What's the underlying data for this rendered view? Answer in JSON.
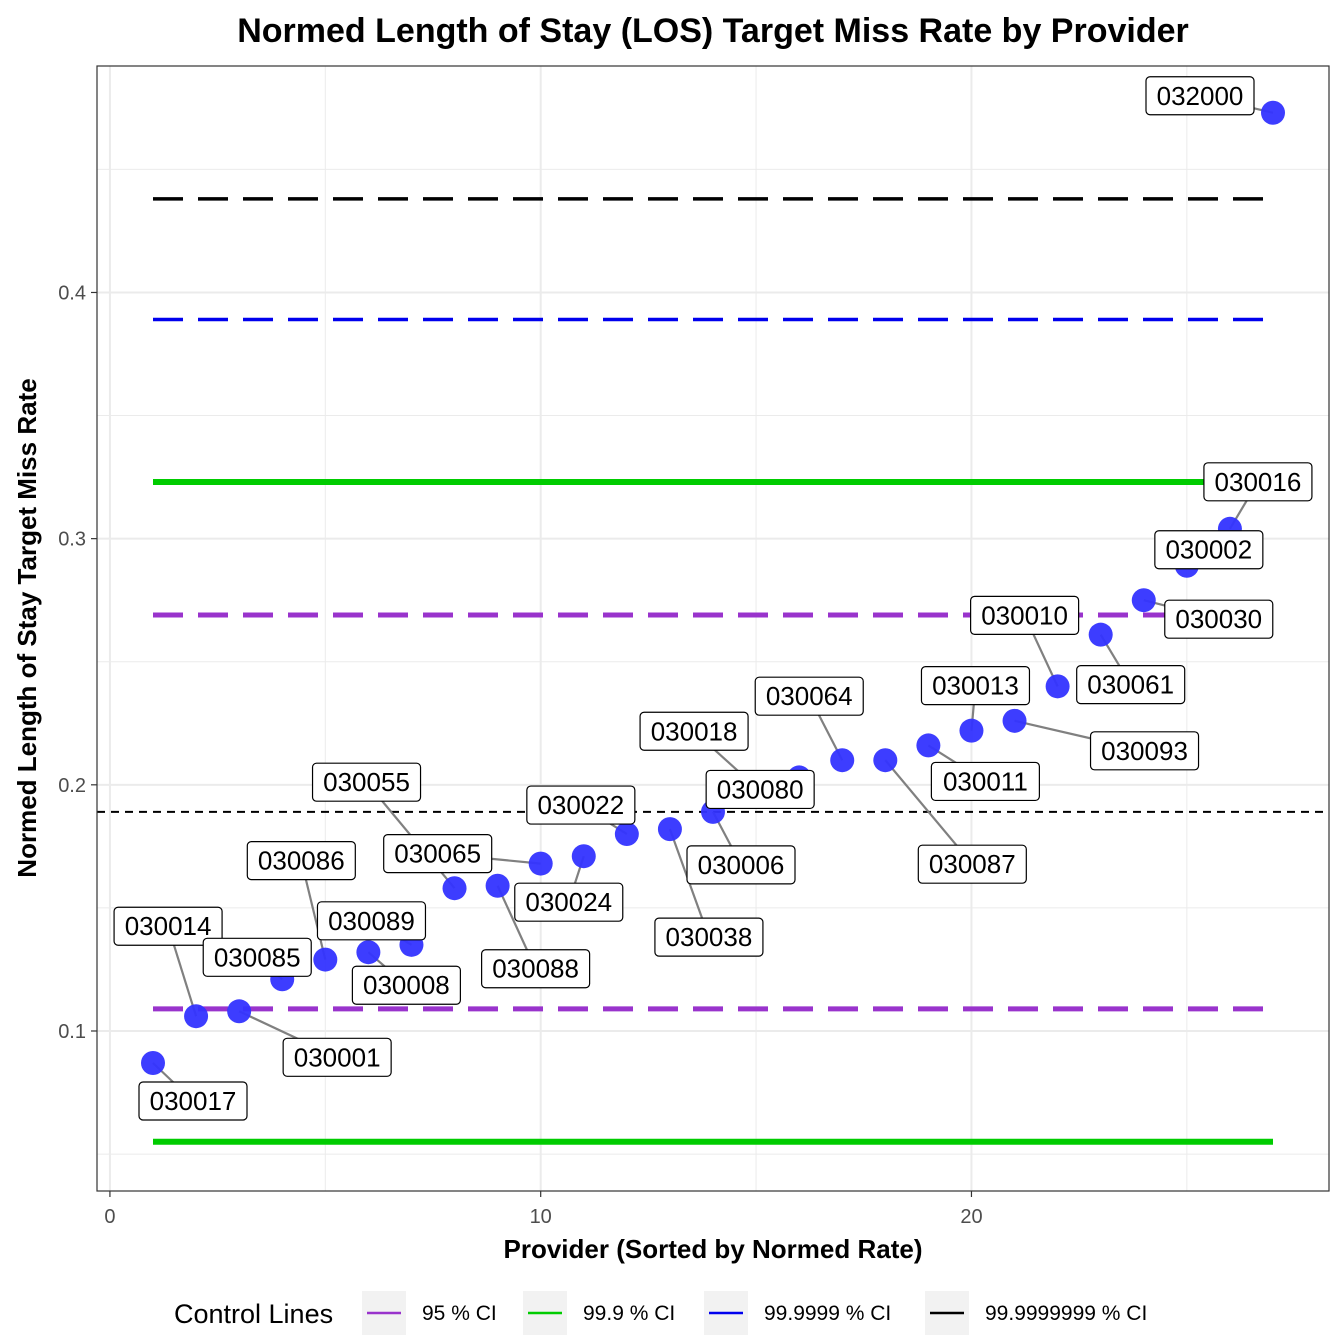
{
  "chart_data": {
    "type": "scatter",
    "title": "Normed Length of Stay (LOS) Target Miss Rate by Provider",
    "xlabel": "Provider (Sorted by Normed Rate)",
    "ylabel": "Normed Length of Stay Target Miss Rate",
    "xlim": [
      -0.3,
      28.3
    ],
    "ylim": [
      0.035,
      0.492
    ],
    "x_ticks": [
      0,
      10,
      20
    ],
    "y_ticks": [
      0.1,
      0.2,
      0.3,
      0.4
    ],
    "x_tick_labels": [
      "0",
      "10",
      "20"
    ],
    "y_tick_labels": [
      "0.1",
      "0.2",
      "0.3",
      "0.4"
    ],
    "grid": true,
    "mean_line": 0.189,
    "points": [
      {
        "x": 1,
        "y": 0.087,
        "label": "030017"
      },
      {
        "x": 2,
        "y": 0.106,
        "label": "030014"
      },
      {
        "x": 3,
        "y": 0.108,
        "label": "030001"
      },
      {
        "x": 4,
        "y": 0.121,
        "label": "030085"
      },
      {
        "x": 5,
        "y": 0.129,
        "label": "030086"
      },
      {
        "x": 6,
        "y": 0.132,
        "label": "030008"
      },
      {
        "x": 7,
        "y": 0.135,
        "label": "030089"
      },
      {
        "x": 8,
        "y": 0.158,
        "label": "030055"
      },
      {
        "x": 9,
        "y": 0.159,
        "label": "030088"
      },
      {
        "x": 10,
        "y": 0.168,
        "label": "030065"
      },
      {
        "x": 11,
        "y": 0.171,
        "label": "030024"
      },
      {
        "x": 12,
        "y": 0.18,
        "label": "030022"
      },
      {
        "x": 13,
        "y": 0.182,
        "label": "030038"
      },
      {
        "x": 14,
        "y": 0.189,
        "label": "030006"
      },
      {
        "x": 15,
        "y": 0.199,
        "label": "030018"
      },
      {
        "x": 16,
        "y": 0.203,
        "label": "030080"
      },
      {
        "x": 17,
        "y": 0.21,
        "label": "030064"
      },
      {
        "x": 18,
        "y": 0.21,
        "label": "030087"
      },
      {
        "x": 19,
        "y": 0.216,
        "label": "030011"
      },
      {
        "x": 20,
        "y": 0.222,
        "label": "030013"
      },
      {
        "x": 21,
        "y": 0.226,
        "label": "030093"
      },
      {
        "x": 22,
        "y": 0.24,
        "label": "030010"
      },
      {
        "x": 23,
        "y": 0.261,
        "label": "030061"
      },
      {
        "x": 24,
        "y": 0.275,
        "label": "030030"
      },
      {
        "x": 25,
        "y": 0.289,
        "label": "030002"
      },
      {
        "x": 26,
        "y": 0.304,
        "label": "030016"
      },
      {
        "x": 27,
        "y": 0.473,
        "label": "032000"
      }
    ],
    "control_lines": [
      {
        "name": "95 % CI",
        "color": "#9933cc",
        "lower": 0.109,
        "upper": 0.269,
        "style": "dashed"
      },
      {
        "name": "99.9 % CI",
        "color": "#00cc00",
        "lower": 0.055,
        "upper": 0.323,
        "style": "solid"
      },
      {
        "name": "99.9999 % CI",
        "color": "#0000ee",
        "lower": null,
        "upper": 0.389,
        "style": "dashed"
      },
      {
        "name": "99.9999999 % CI",
        "color": "#000000",
        "lower": null,
        "upper": 0.438,
        "style": "dashed"
      }
    ],
    "legend": {
      "title": "Control Lines",
      "position": "bottom"
    },
    "point_color": "#3333ff"
  }
}
